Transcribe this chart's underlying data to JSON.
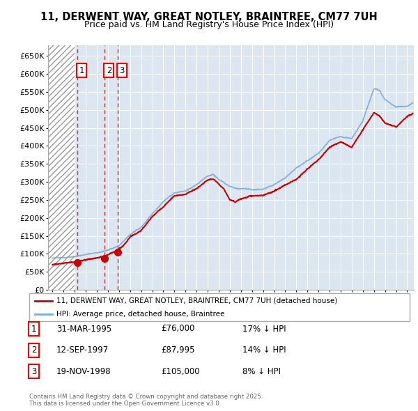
{
  "title_line1": "11, DERWENT WAY, GREAT NOTLEY, BRAINTREE, CM77 7UH",
  "title_line2": "Price paid vs. HM Land Registry's House Price Index (HPI)",
  "background_color": "#dce6f0",
  "plot_bg_color": "#dce6f0",
  "hatch_region_end_year": 1995.0,
  "sale_dates_num": [
    1995.25,
    1997.71,
    1998.89
  ],
  "sale_prices": [
    76000,
    87995,
    105000
  ],
  "sale_labels": [
    "1",
    "2",
    "3"
  ],
  "legend_line1": "11, DERWENT WAY, GREAT NOTLEY, BRAINTREE, CM77 7UH (detached house)",
  "legend_line2": "HPI: Average price, detached house, Braintree",
  "table_data": [
    [
      "1",
      "31-MAR-1995",
      "£76,000",
      "17% ↓ HPI"
    ],
    [
      "2",
      "12-SEP-1997",
      "£87,995",
      "14% ↓ HPI"
    ],
    [
      "3",
      "19-NOV-1998",
      "£105,000",
      "8% ↓ HPI"
    ]
  ],
  "footer_text": "Contains HM Land Registry data © Crown copyright and database right 2025.\nThis data is licensed under the Open Government Licence v3.0.",
  "red_line_color": "#cc0000",
  "blue_line_color": "#7aadd4",
  "ylim": [
    0,
    680000
  ],
  "yticks": [
    0,
    50000,
    100000,
    150000,
    200000,
    250000,
    300000,
    350000,
    400000,
    450000,
    500000,
    550000,
    600000,
    650000
  ],
  "xlim_start": 1992.6,
  "xlim_end": 2025.6
}
